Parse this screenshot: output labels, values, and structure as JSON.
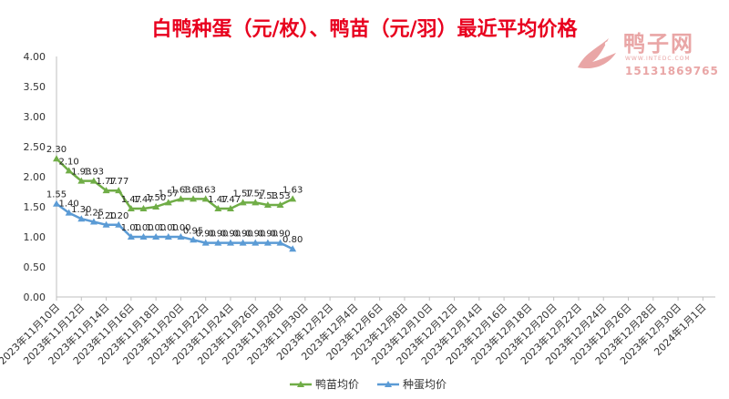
{
  "chart_data": {
    "type": "line",
    "title": "白鸭种蛋（元/枚）、鸭苗（元/羽）最近平均价格",
    "xlabel": "",
    "ylabel": "",
    "ylim": [
      0,
      4
    ],
    "yticks": [
      "0.00",
      "0.50",
      "1.00",
      "1.50",
      "2.00",
      "2.50",
      "3.00",
      "3.50",
      "4.00"
    ],
    "x_range": [
      "2023-11-10",
      "2024-01-02"
    ],
    "x_tick_labels": [
      "2023年11月10日",
      "2023年11月12日",
      "2023年11月14日",
      "2023年11月16日",
      "2023年11月18日",
      "2023年11月20日",
      "2023年11月22日",
      "2023年11月24日",
      "2023年11月26日",
      "2023年11月28日",
      "2023年11月30日",
      "2023年12月2日",
      "2023年12月4日",
      "2023年12月6日",
      "2023年12月8日",
      "2023年12月10日",
      "2023年12月12日",
      "2023年12月14日",
      "2023年12月16日",
      "2023年12月18日",
      "2023年12月20日",
      "2023年12月22日",
      "2023年12月24日",
      "2023年12月26日",
      "2023年12月28日",
      "2023年12月30日",
      "2024年1月1日"
    ],
    "grid": false,
    "legend_position": "bottom",
    "series": [
      {
        "name": "鸭苗均价",
        "color": "#70ad47",
        "marker": "triangle",
        "x": [
          "2023-11-10",
          "2023-11-11",
          "2023-11-12",
          "2023-11-13",
          "2023-11-14",
          "2023-11-15",
          "2023-11-16",
          "2023-11-17",
          "2023-11-18",
          "2023-11-19",
          "2023-11-20",
          "2023-11-21",
          "2023-11-22",
          "2023-11-23",
          "2023-11-24",
          "2023-11-25",
          "2023-11-26",
          "2023-11-27",
          "2023-11-28",
          "2023-11-29"
        ],
        "values": [
          2.3,
          2.1,
          1.93,
          1.93,
          1.77,
          1.77,
          1.47,
          1.47,
          1.5,
          1.57,
          1.63,
          1.63,
          1.63,
          1.47,
          1.47,
          1.57,
          1.57,
          1.53,
          1.53,
          1.63
        ],
        "labels": [
          "2.30",
          "2.10",
          "1.93",
          "1.93",
          "1.77",
          "1.77",
          "1.47",
          "1.47",
          "1.50",
          "1.57",
          "1.63",
          "1.63",
          "1.63",
          "1.47",
          "1.47",
          "1.57",
          "1.57",
          "1.53",
          "1.53",
          "1.63"
        ]
      },
      {
        "name": "种蛋均价",
        "color": "#5b9bd5",
        "marker": "triangle",
        "x": [
          "2023-11-10",
          "2023-11-11",
          "2023-11-12",
          "2023-11-13",
          "2023-11-14",
          "2023-11-15",
          "2023-11-16",
          "2023-11-17",
          "2023-11-18",
          "2023-11-19",
          "2023-11-20",
          "2023-11-21",
          "2023-11-22",
          "2023-11-23",
          "2023-11-24",
          "2023-11-25",
          "2023-11-26",
          "2023-11-27",
          "2023-11-28",
          "2023-11-29"
        ],
        "values": [
          1.55,
          1.4,
          1.3,
          1.25,
          1.2,
          1.2,
          1.0,
          1.0,
          1.0,
          1.0,
          1.0,
          0.95,
          0.9,
          0.9,
          0.9,
          0.9,
          0.9,
          0.9,
          0.9,
          0.8
        ],
        "labels": [
          "1.55",
          "1.40",
          "1.30",
          "1.25",
          "1.20",
          "1.20",
          "1.00",
          "1.00",
          "1.00",
          "1.00",
          "1.00",
          "0.95",
          "0.90",
          "0.90",
          "0.90",
          "0.90",
          "0.90",
          "0.90",
          "0.90",
          "0.80"
        ]
      }
    ]
  },
  "watermark": {
    "name": "鸭子网",
    "url": "WWW.INTEDC.COM",
    "phone": "15131869765"
  }
}
